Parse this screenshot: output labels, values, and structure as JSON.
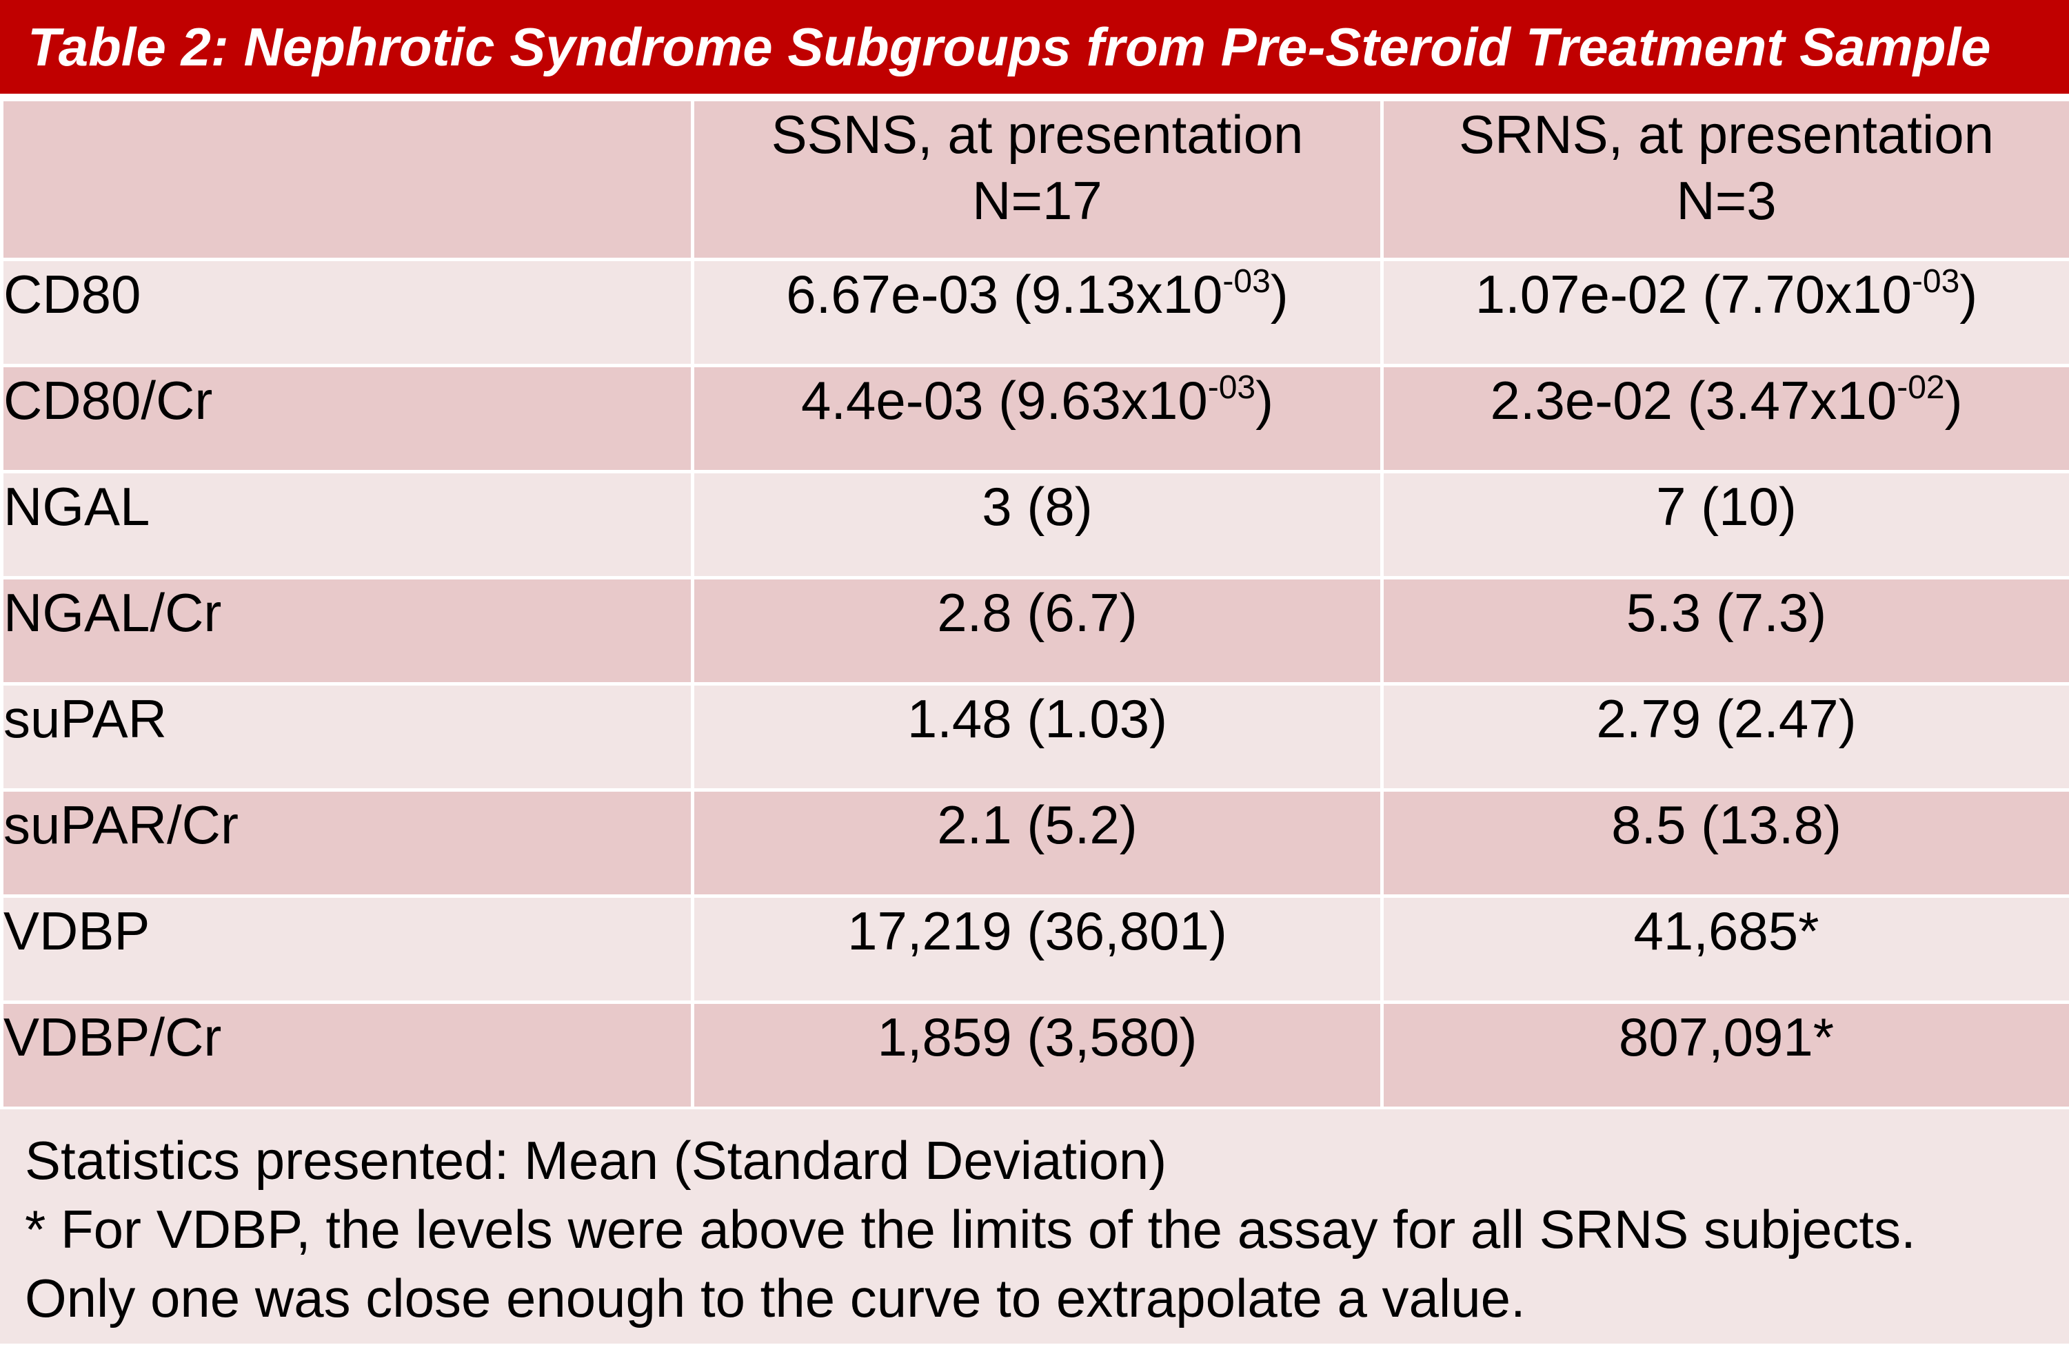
{
  "title": "Table 2: Nephrotic Syndrome Subgroups from Pre-Steroid Treatment Sample",
  "columns": {
    "ssns_line1": "SSNS, at presentation",
    "ssns_line2": "N=17",
    "srns_line1": "SRNS, at presentation",
    "srns_line2": "N=3"
  },
  "rows": [
    {
      "label": "CD80",
      "ssns_base": "6.67e-03 (9.13x10",
      "ssns_exp": "-03",
      "ssns_tail": ")",
      "srns_base": "1.07e-02 (7.70x10",
      "srns_exp": "-03",
      "srns_tail": ")"
    },
    {
      "label": "CD80/Cr",
      "ssns_base": "4.4e-03 (9.63x10",
      "ssns_exp": "-03",
      "ssns_tail": ")",
      "srns_base": "2.3e-02 (3.47x10",
      "srns_exp": "-02",
      "srns_tail": ")"
    },
    {
      "label": "NGAL",
      "ssns": "3 (8)",
      "srns": "7 (10)"
    },
    {
      "label": "NGAL/Cr",
      "ssns": "2.8 (6.7)",
      "srns": "5.3 (7.3)"
    },
    {
      "label": "suPAR",
      "ssns": "1.48 (1.03)",
      "srns": "2.79 (2.47)"
    },
    {
      "label": "suPAR/Cr",
      "ssns": "2.1 (5.2)",
      "srns": "8.5 (13.8)"
    },
    {
      "label": "VDBP",
      "ssns": "17,219 (36,801)",
      "srns": "41,685*"
    },
    {
      "label": "VDBP/Cr",
      "ssns": "1,859 (3,580)",
      "srns": "807,091*"
    }
  ],
  "footnotes": [
    "Statistics presented: Mean (Standard Deviation)",
    "* For VDBP, the levels were above the limits of the assay for all SRNS subjects.",
    "Only one was close enough to the curve to extrapolate a value."
  ]
}
